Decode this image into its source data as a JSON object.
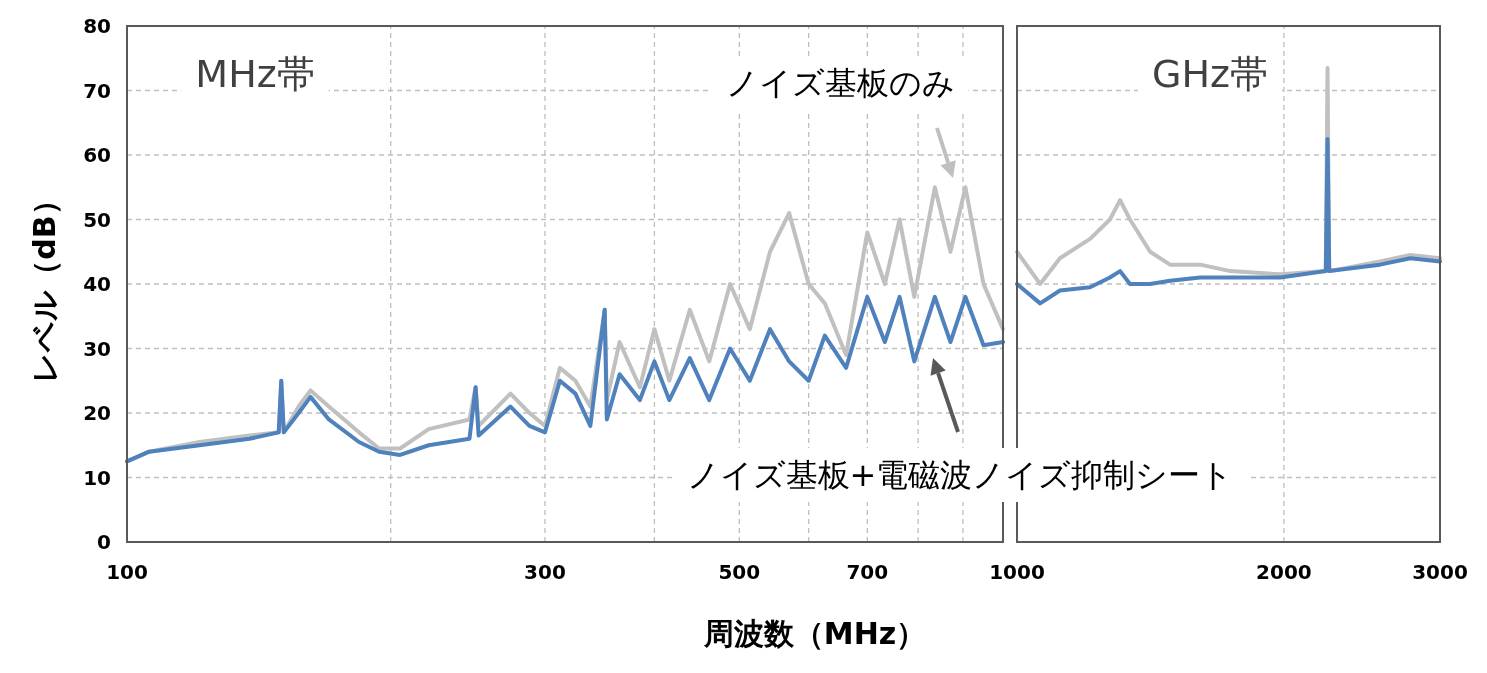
{
  "chart_data": [
    {
      "type": "line",
      "title": "MHz帯",
      "xlabel": "周波数（MHz）",
      "ylabel": "レベル（dB）",
      "log": "x",
      "grid": true,
      "xlim": [
        100,
        1000
      ],
      "ylim": [
        0,
        80
      ],
      "xticks": [
        100,
        {
          "value": 200,
          "label": null
        },
        300,
        {
          "value": 400,
          "label": null
        },
        500,
        {
          "value": 600,
          "label": null
        },
        700,
        {
          "value": 800,
          "label": null
        },
        {
          "value": 900,
          "label": null
        }
      ],
      "yticks": [
        0,
        10,
        20,
        30,
        40,
        50,
        60,
        70,
        80
      ],
      "x": [
        100,
        106,
        121,
        138,
        149,
        150,
        151,
        157,
        162,
        170,
        184,
        194,
        205,
        221,
        246,
        250,
        252,
        274,
        288,
        300,
        312,
        325,
        338,
        351,
        353,
        365,
        385,
        400,
        416,
        439,
        462,
        488,
        514,
        542,
        570,
        600,
        626,
        662,
        700,
        733,
        762,
        792,
        836,
        871,
        906,
        950,
        1000
      ],
      "series": [
        {
          "name": "ノイズ基板のみ",
          "color": "#c0c0c0",
          "values": [
            12.5,
            14,
            15.5,
            16.5,
            17,
            25,
            17,
            21,
            23.5,
            21,
            17,
            14.5,
            14.5,
            17.5,
            19,
            24,
            18,
            23,
            20,
            18,
            27,
            25,
            21,
            36,
            22,
            31,
            24,
            33,
            25,
            36,
            28,
            40,
            33,
            45,
            51,
            40,
            37,
            29,
            48,
            40,
            50,
            38,
            55,
            45,
            55,
            40,
            33
          ]
        },
        {
          "name": "ノイズ基板+電磁波ノイズ抑制シート",
          "color": "#4f81bd",
          "values": [
            12.5,
            14,
            15,
            16,
            17,
            25,
            17,
            20,
            22.5,
            19,
            15.5,
            14,
            13.5,
            15,
            16,
            24,
            16.5,
            21,
            18,
            17,
            25,
            23,
            18,
            36,
            19,
            26,
            22,
            28,
            22,
            28.5,
            22,
            30,
            25,
            33,
            28,
            25,
            32,
            27,
            38,
            31,
            38,
            28,
            38,
            31,
            38,
            30.5,
            31
          ]
        }
      ]
    },
    {
      "type": "line",
      "title": "GHz帯",
      "log": "x",
      "grid": true,
      "tick_labels": "x",
      "xlim": [
        1000,
        3000
      ],
      "ylim": [
        0,
        80
      ],
      "xticks": [
        1000,
        2000,
        3000
      ],
      "yticks": [
        0,
        10,
        20,
        30,
        40,
        50,
        60,
        70,
        80
      ],
      "x": [
        1000,
        1062,
        1118,
        1209,
        1273,
        1307,
        1341,
        1413,
        1488,
        1609,
        1740,
        1982,
        2230,
        2240,
        2250,
        2567,
        2778,
        3000
      ],
      "series": [
        {
          "color": "#c0c0c0",
          "values": [
            45,
            40,
            44,
            47,
            50,
            53,
            50,
            45,
            43,
            43,
            42,
            41.5,
            42,
            73.5,
            42,
            43.5,
            44.5,
            44
          ]
        },
        {
          "color": "#4f81bd",
          "values": [
            40,
            37,
            39,
            39.5,
            41,
            42,
            40,
            40,
            40.5,
            41,
            41,
            41,
            42,
            62.5,
            42,
            43,
            44,
            43.5
          ]
        }
      ]
    }
  ]
}
